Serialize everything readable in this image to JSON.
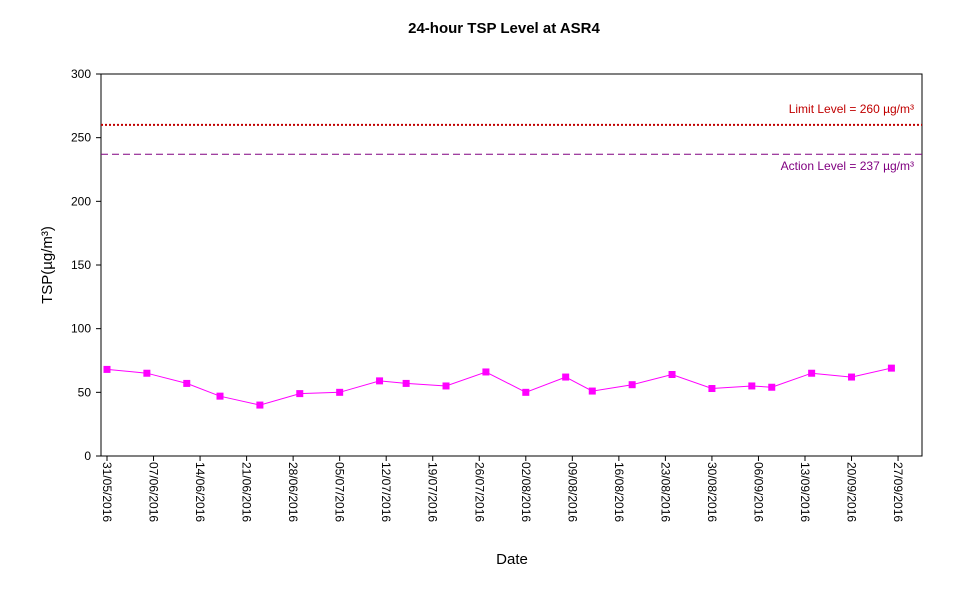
{
  "chart_data": {
    "type": "line",
    "title": "24-hour TSP Level at ASR4",
    "xlabel": "Date",
    "ylabel": "TSP(µg/m³)",
    "ylim": [
      0,
      300
    ],
    "yticks": [
      0,
      50,
      100,
      150,
      200,
      250,
      300
    ],
    "xlim": [
      "31/05/2016",
      "30/09/2016"
    ],
    "xticks": [
      "31/05/2016",
      "07/06/2016",
      "14/06/2016",
      "21/06/2016",
      "28/06/2016",
      "05/07/2016",
      "12/07/2016",
      "19/07/2016",
      "26/07/2016",
      "02/08/2016",
      "09/08/2016",
      "16/08/2016",
      "23/08/2016",
      "30/08/2016",
      "06/09/2016",
      "13/09/2016",
      "20/09/2016",
      "27/09/2016"
    ],
    "grid": false,
    "series": [
      {
        "color": "#ff00ff",
        "marker": "square",
        "points": [
          {
            "x": "31/05/2016",
            "y": 68
          },
          {
            "x": "06/06/2016",
            "y": 65
          },
          {
            "x": "12/06/2016",
            "y": 57
          },
          {
            "x": "17/06/2016",
            "y": 47
          },
          {
            "x": "23/06/2016",
            "y": 40
          },
          {
            "x": "29/06/2016",
            "y": 49
          },
          {
            "x": "05/07/2016",
            "y": 50
          },
          {
            "x": "11/07/2016",
            "y": 59
          },
          {
            "x": "15/07/2016",
            "y": 57
          },
          {
            "x": "21/07/2016",
            "y": 55
          },
          {
            "x": "27/07/2016",
            "y": 66
          },
          {
            "x": "02/08/2016",
            "y": 50
          },
          {
            "x": "08/08/2016",
            "y": 62
          },
          {
            "x": "12/08/2016",
            "y": 51
          },
          {
            "x": "18/08/2016",
            "y": 56
          },
          {
            "x": "24/08/2016",
            "y": 64
          },
          {
            "x": "30/08/2016",
            "y": 53
          },
          {
            "x": "05/09/2016",
            "y": 55
          },
          {
            "x": "08/09/2016",
            "y": 54
          },
          {
            "x": "14/09/2016",
            "y": 65
          },
          {
            "x": "20/09/2016",
            "y": 62
          },
          {
            "x": "26/09/2016",
            "y": 69
          }
        ]
      }
    ],
    "reference_lines": [
      {
        "value": 260,
        "label": "Limit Level  = 260 µg/m³",
        "color": "#c00000",
        "style": "dotted"
      },
      {
        "value": 237,
        "label": "Action Level  = 237 µg/m³",
        "color": "#800080",
        "style": "dashed"
      }
    ]
  }
}
